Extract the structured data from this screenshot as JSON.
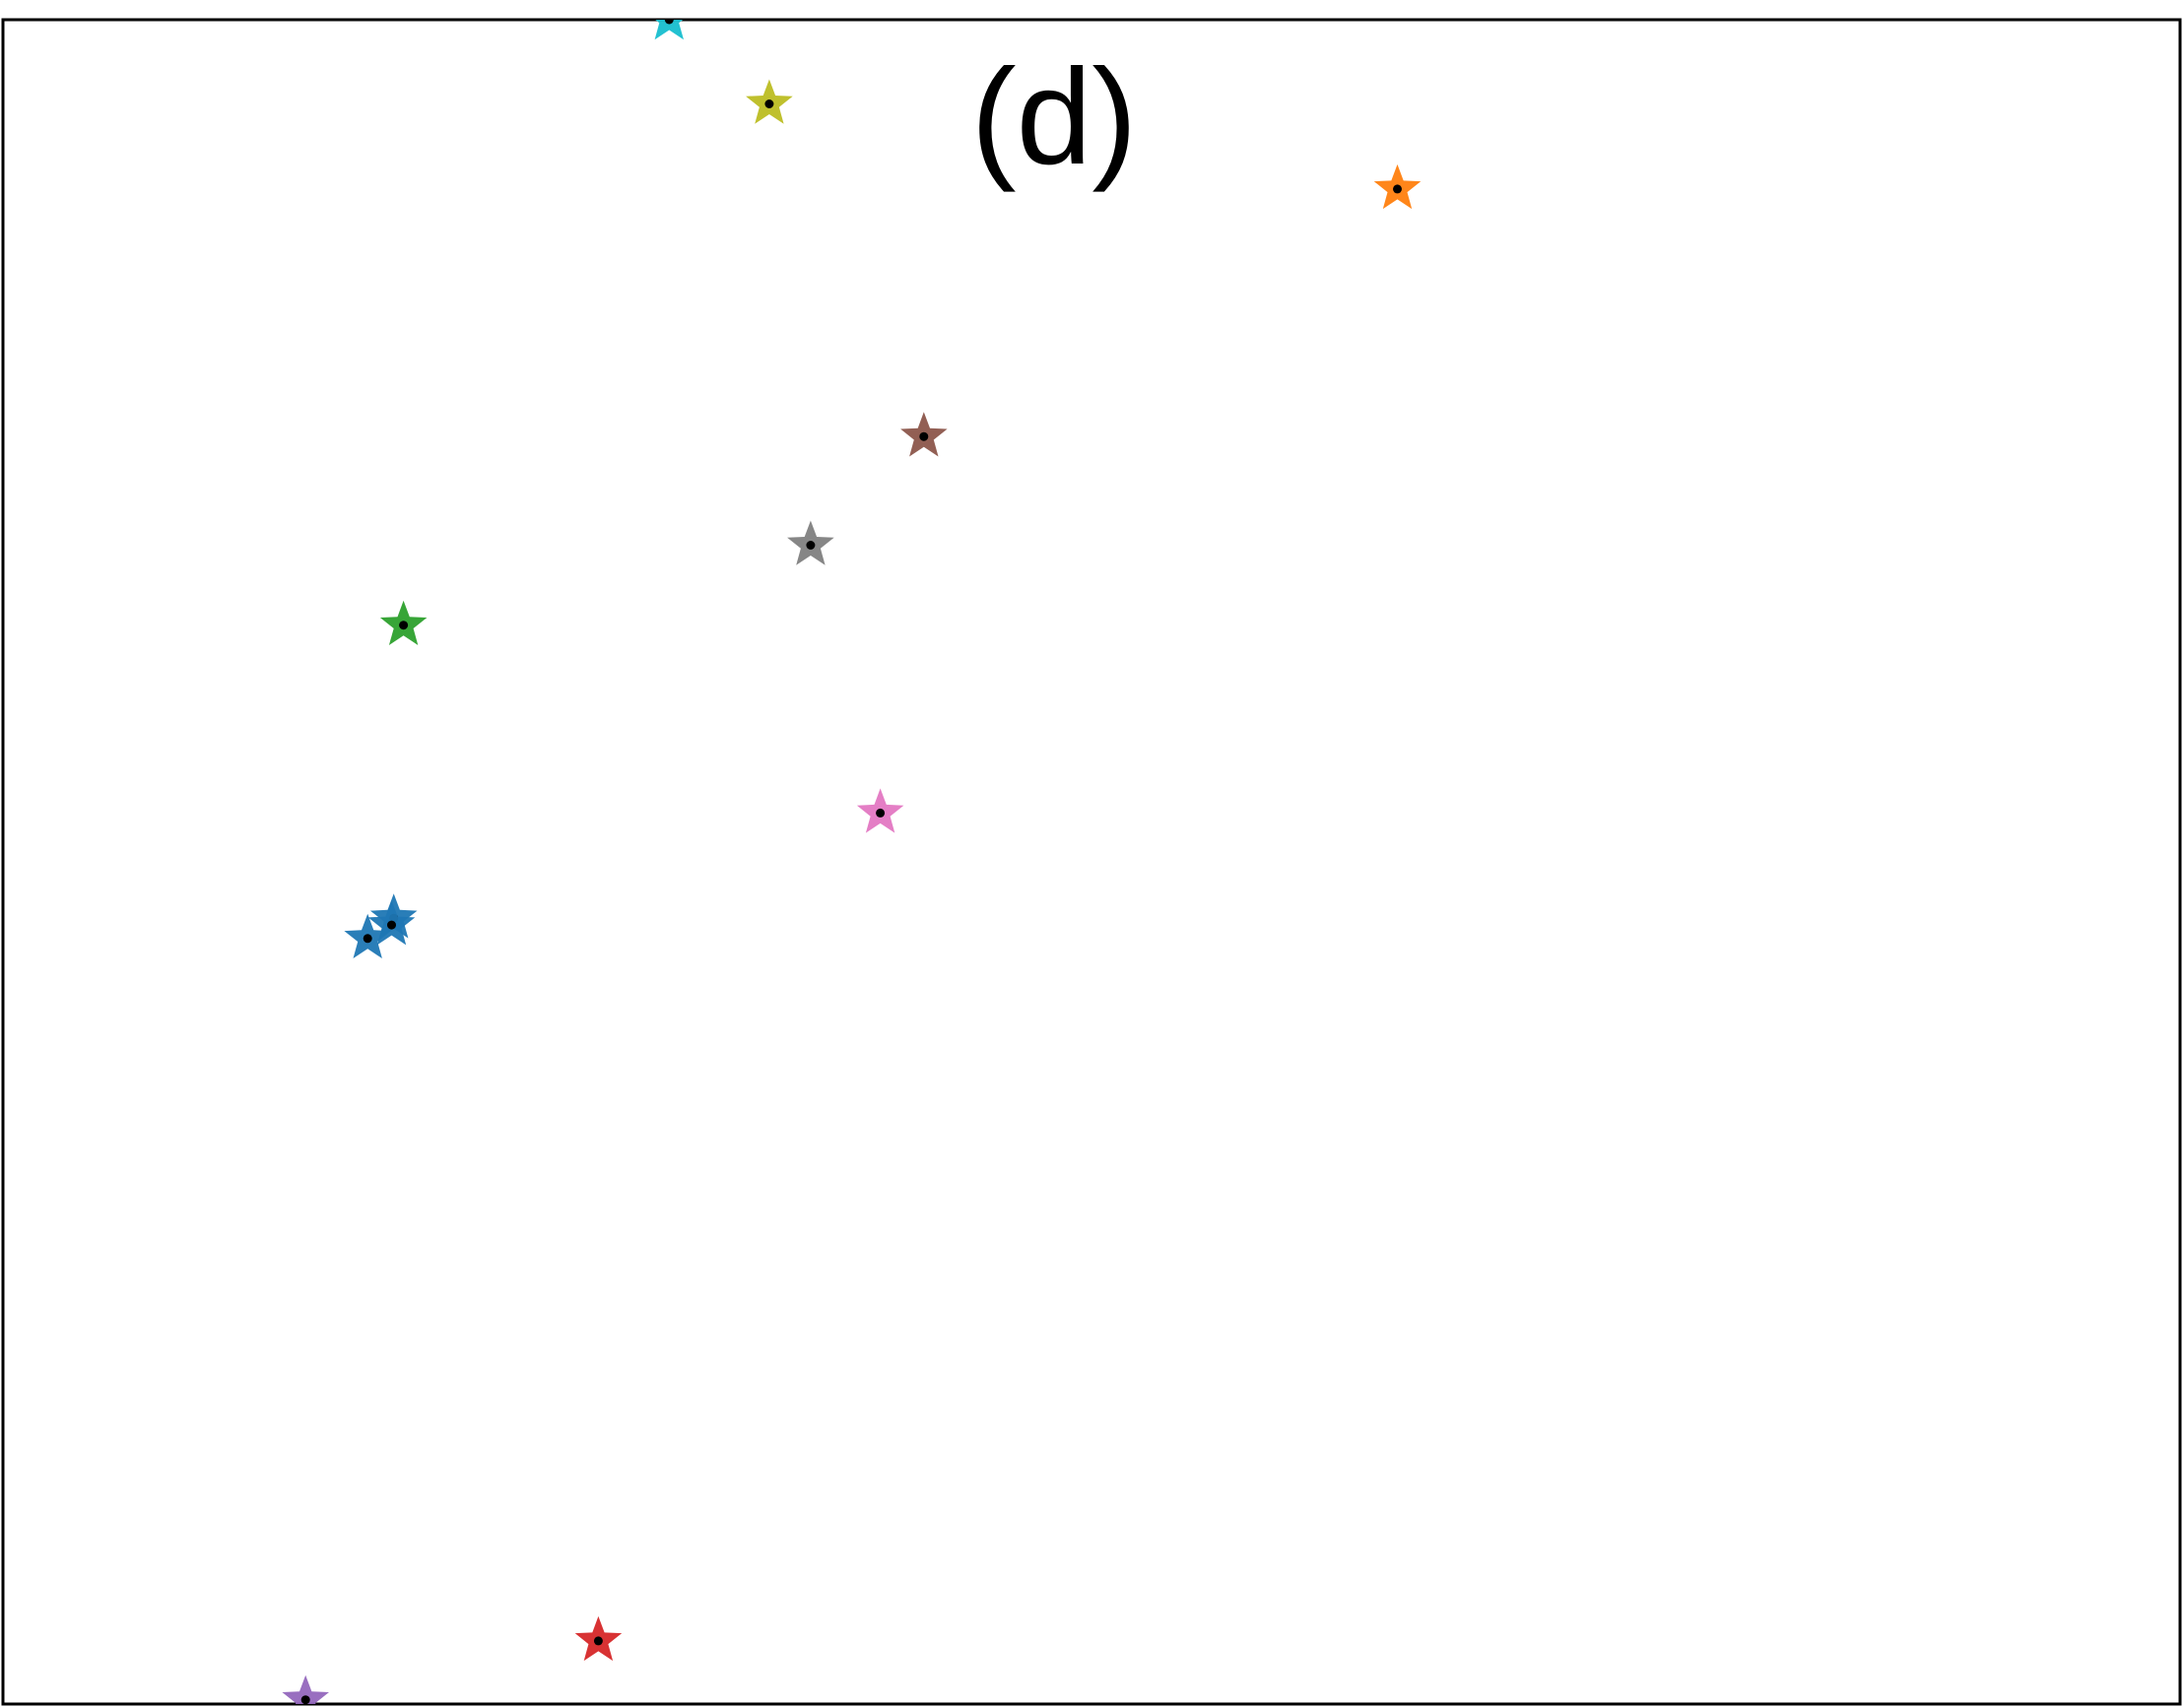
{
  "chart_data": {
    "type": "scatter",
    "title": "(d)",
    "xlabel": "",
    "ylabel": "",
    "xlim": [
      0,
      100
    ],
    "ylim": [
      0,
      100
    ],
    "grid": false,
    "axis_ticks": false,
    "marker": "star",
    "center_dot_color": "#000000",
    "series": [
      {
        "color": "#1f77b4",
        "points": [
          [
            17.95,
            46.65
          ],
          [
            16.75,
            45.45
          ],
          [
            17.85,
            46.25
          ]
        ]
      },
      {
        "color": "#ff7f0e",
        "points": [
          [
            64.05,
            89.95
          ]
        ]
      },
      {
        "color": "#2ca02c",
        "points": [
          [
            18.4,
            64.05
          ]
        ]
      },
      {
        "color": "#d62728",
        "points": [
          [
            27.35,
            3.75
          ]
        ]
      },
      {
        "color": "#9467bd",
        "points": [
          [
            13.9,
            0.25
          ]
        ]
      },
      {
        "color": "#8c564b",
        "points": [
          [
            42.3,
            75.25
          ]
        ]
      },
      {
        "color": "#e377c2",
        "points": [
          [
            40.3,
            52.9
          ]
        ]
      },
      {
        "color": "#7f7f7f",
        "points": [
          [
            37.1,
            68.8
          ]
        ]
      },
      {
        "color": "#bcbd22",
        "points": [
          [
            35.2,
            95.0
          ]
        ]
      },
      {
        "color": "#17becf",
        "points": [
          [
            30.6,
            100.0
          ]
        ]
      }
    ]
  }
}
